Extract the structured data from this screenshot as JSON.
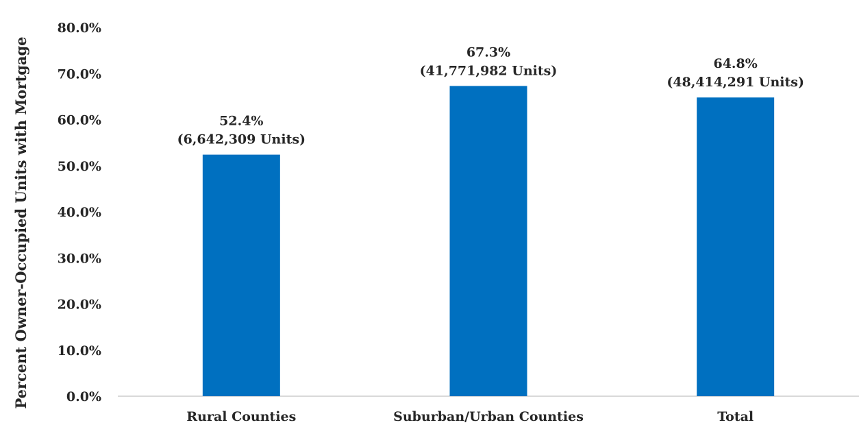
{
  "chart_data": {
    "type": "bar",
    "title": "",
    "xlabel": "",
    "ylabel": "Percent Owner-Occupied Units with Mortgage",
    "categories": [
      "Rural Counties",
      "Suburban/Urban Counties",
      "Total"
    ],
    "values": [
      52.4,
      67.3,
      64.8
    ],
    "data_labels": [
      {
        "pct": "52.4%",
        "units": "(6,642,309 Units)"
      },
      {
        "pct": "67.3%",
        "units": "(41,771,982 Units)"
      },
      {
        "pct": "64.8%",
        "units": "(48,414,291 Units)"
      }
    ],
    "ylim": [
      0,
      80
    ],
    "yticks": [
      0,
      10,
      20,
      30,
      40,
      50,
      60,
      70,
      80
    ],
    "ytick_labels": [
      "0.0%",
      "10.0%",
      "20.0%",
      "30.0%",
      "40.0%",
      "50.0%",
      "60.0%",
      "70.0%",
      "80.0%"
    ],
    "grid": false,
    "legend": "none",
    "colors": {
      "bar": "#0070C0",
      "axis": "#D9D9D9",
      "text": "#262626"
    }
  }
}
